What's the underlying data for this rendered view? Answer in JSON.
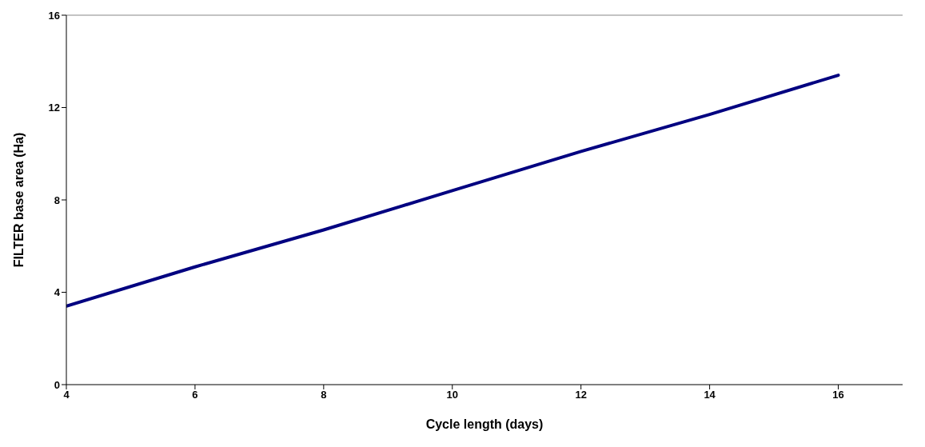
{
  "chart_data": {
    "type": "line",
    "xlabel": "Cycle length (days)",
    "ylabel": "FILTER base area (Ha)",
    "x": [
      4,
      6,
      8,
      10,
      12,
      14,
      16
    ],
    "series": [
      {
        "color": "#000080",
        "values": [
          3.4,
          5.1,
          6.7,
          8.4,
          10.1,
          11.7,
          13.4
        ]
      }
    ],
    "xlim": [
      4,
      17
    ],
    "xticks": [
      4,
      6,
      8,
      10,
      12,
      14,
      16
    ],
    "ylim": [
      0,
      16
    ],
    "yticks": [
      0,
      4,
      8,
      12,
      16
    ],
    "grid": false,
    "legend": false,
    "marker": "none",
    "line_style": "solid"
  }
}
